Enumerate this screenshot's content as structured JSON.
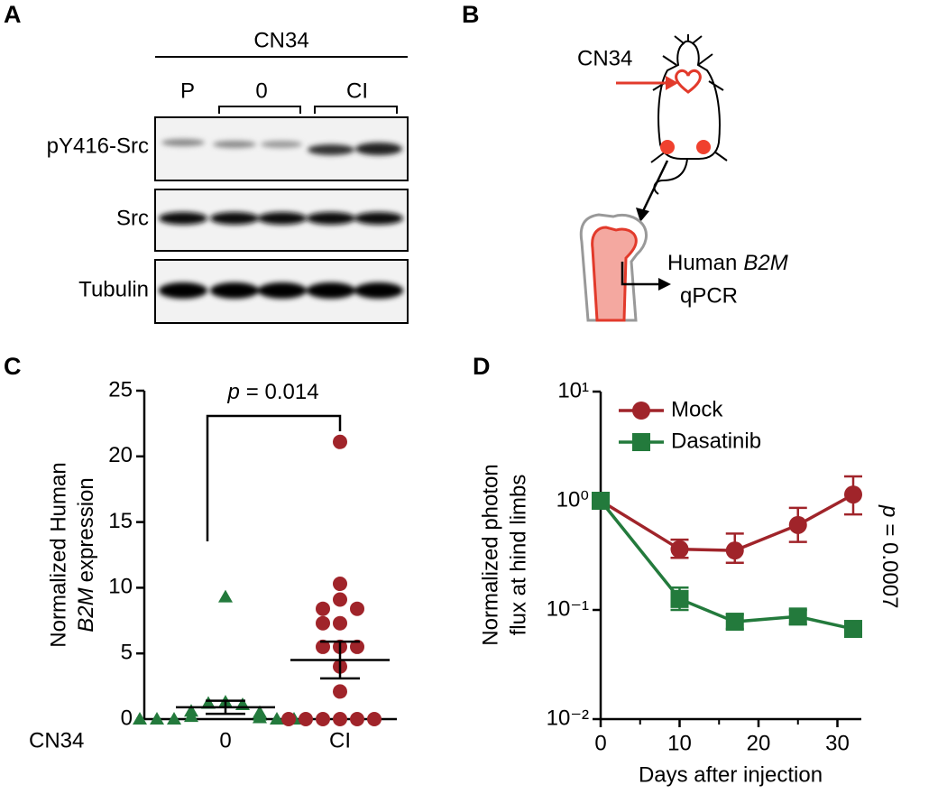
{
  "panel_labels": [
    "A",
    "B",
    "C",
    "D"
  ],
  "blot": {
    "title": "CN34",
    "lanes": [
      "P",
      "0",
      "CI"
    ],
    "rows": [
      "pY416-Src",
      "Src",
      "Tubulin"
    ]
  },
  "schematic": {
    "cell_line": "CN34",
    "readout_prefix": "Human",
    "gene": "B2M",
    "method": "qPCR"
  },
  "chart_data": [
    {
      "type": "dot",
      "y_label": {
        "line1": "Normalized Human",
        "gene": "B2M",
        "line2": "expression"
      },
      "group_label": "CN34",
      "categories": [
        "0",
        "CI"
      ],
      "groups": [
        {
          "color": "#237a3c",
          "marker": "triangle",
          "values": [
            9.3,
            1.3,
            1.2,
            1.1,
            0.6,
            0.5,
            0.3,
            0.2,
            0.1,
            0,
            0,
            0,
            0,
            0
          ],
          "mean": 0.9,
          "error": 0.5
        },
        {
          "color": "#a0242a",
          "marker": "circle",
          "values": [
            21.1,
            10.3,
            9.1,
            8.4,
            8.4,
            7.3,
            7.3,
            5.5,
            5.5,
            5.5,
            4.0,
            2.1,
            0,
            0,
            0,
            0,
            0,
            0
          ],
          "mean": 4.5,
          "error": 1.4
        }
      ],
      "ylim": [
        0,
        25
      ],
      "yticks": [
        0,
        5,
        10,
        15,
        20,
        25
      ],
      "annotation": {
        "symbol": "p",
        "text": "= 0.014"
      }
    },
    {
      "type": "line",
      "x_label": "Days after injection",
      "y_label": [
        "Normalized photon",
        "flux at hind limbs"
      ],
      "log_y": true,
      "x": [
        0,
        10,
        17,
        25,
        32
      ],
      "xlim": [
        0,
        34
      ],
      "xticks": [
        0,
        10,
        20,
        30
      ],
      "xminorticks": [
        5,
        15,
        25
      ],
      "ylim": [
        0.01,
        10
      ],
      "yticks": [
        {
          "value": 0.01,
          "label": "10⁻²"
        },
        {
          "value": 0.1,
          "label": "10⁻¹"
        },
        {
          "value": 1,
          "label": "10⁰"
        },
        {
          "value": 10,
          "label": "10¹"
        }
      ],
      "legend": "upper left",
      "series": [
        {
          "name": "Mock",
          "color": "#a0242a",
          "marker": "circle",
          "values": [
            1.0,
            0.36,
            0.35,
            0.6,
            1.14
          ],
          "upper": [
            null,
            0.44,
            0.5,
            0.86,
            1.67
          ],
          "lower": [
            null,
            0.3,
            0.27,
            0.42,
            0.75
          ]
        },
        {
          "name": "Dasatinib",
          "color": "#237a3c",
          "marker": "square",
          "values": [
            1.0,
            0.126,
            0.078,
            0.087,
            0.067
          ],
          "upper": [
            null,
            0.16,
            0.091,
            0.1,
            0.078
          ],
          "lower": [
            null,
            0.1,
            0.067,
            0.074,
            0.057
          ]
        }
      ],
      "annotation": {
        "symbol": "p",
        "text": "= 0.0007"
      }
    }
  ]
}
